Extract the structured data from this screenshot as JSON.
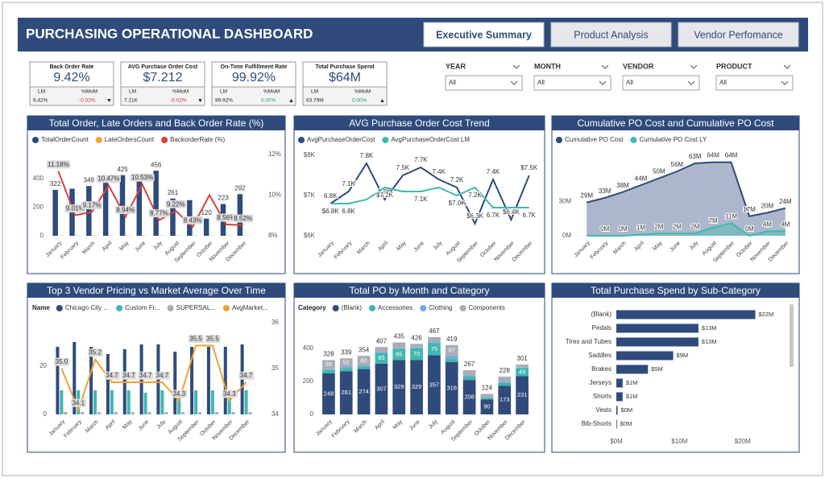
{
  "header": {
    "title": "PURCHASING OPERATIONAL DASHBOARD",
    "tabs": [
      "Executive Summary",
      "Product Analysis",
      "Vendor Perfomance"
    ],
    "active_tab": 0
  },
  "kpis": [
    {
      "title": "Back Order Rate",
      "value": "9.42%",
      "lm_label": "LM",
      "mom_label": "%MoM",
      "lm_value": "9.42%",
      "mom_value": "-0.02%",
      "mom_color": "#d62b2b",
      "trend": "▼"
    },
    {
      "title": "AVG Purchase Order Cost",
      "value": "$7.212",
      "lm_label": "LM",
      "mom_label": "%MoM",
      "lm_value": "7.21K",
      "mom_value": "-0.02%",
      "mom_color": "#d62b2b",
      "trend": "▼"
    },
    {
      "title": "On-Time Fulfillment Rate",
      "value": "99.92%",
      "lm_label": "LM",
      "mom_label": "%MoM",
      "lm_value": "99.92%",
      "mom_value": "0.00%",
      "mom_color": "#1e9e6a",
      "trend": "▲"
    },
    {
      "title": "Total Purchase Spend",
      "value": "$64M",
      "lm_label": "LM",
      "mom_label": "%MoM",
      "lm_value": "63.79M",
      "mom_value": "0.00%",
      "mom_color": "#1e9e6a",
      "trend": "▲"
    }
  ],
  "filters": [
    {
      "label": "YEAR",
      "value": "All"
    },
    {
      "label": "MONTH",
      "value": "All"
    },
    {
      "label": "VENDOR",
      "value": "All"
    },
    {
      "label": "PRODUCT",
      "value": "All"
    }
  ],
  "chart_data": [
    {
      "type": "combo",
      "title": "Total Order, Late Orders and Back Order Rate (%)",
      "categories": [
        "January",
        "February",
        "March",
        "April",
        "May",
        "June",
        "July",
        "August",
        "September",
        "October",
        "November",
        "December"
      ],
      "series": [
        {
          "name": "TotalOrderCount",
          "color": "#2f4b7c",
          "kind": "bar",
          "values": [
            322,
            330,
            349,
            400,
            425,
            410,
            456,
            261,
            250,
            120,
            223,
            292
          ],
          "value_labels": [
            "322",
            null,
            "349",
            null,
            "425",
            null,
            "456",
            "261",
            null,
            "120",
            "223",
            "292"
          ]
        },
        {
          "name": "LateOrdersCount",
          "color": "#f0a830",
          "kind": "bar",
          "values": [
            2,
            2,
            2,
            2,
            2,
            2,
            2,
            2,
            2,
            2,
            2,
            2
          ]
        },
        {
          "name": "BackorderRate (%)",
          "color": "#d9403a",
          "kind": "line",
          "axis": "y2",
          "values": [
            11.18,
            9.01,
            9.17,
            10.47,
            8.94,
            10.53,
            8.77,
            9.22,
            8.43,
            10.0,
            8.56,
            8.52
          ],
          "value_labels": [
            "11.18%",
            "9.01%",
            "9.17%",
            "10.47%",
            "8.94%",
            "10.53%",
            "8.77%",
            "9.22%",
            "8.43%",
            null,
            "8.56%",
            "8.52%"
          ]
        }
      ],
      "ylim": [
        0,
        570
      ],
      "yticks": [
        0,
        200,
        400
      ],
      "y2lim": [
        8,
        12
      ],
      "y2ticks": [
        {
          "value": 8,
          "label": "8%"
        },
        {
          "value": 10,
          "label": "10%"
        },
        {
          "value": 12,
          "label": "12%"
        }
      ]
    },
    {
      "type": "line",
      "title": "AVG Purchase Order Cost Trend",
      "categories": [
        "January",
        "February",
        "March",
        "April",
        "May",
        "June",
        "July",
        "August",
        "September",
        "October",
        "November",
        "December"
      ],
      "series": [
        {
          "name": "AvgPurchaseOrderCost",
          "color": "#2f4b7c",
          "values": [
            6.8,
            7.1,
            7.8,
            6.9,
            7.5,
            7.7,
            7.4,
            7.2,
            6.3,
            7.4,
            6.4,
            7.5
          ],
          "value_labels": [
            "6.8K",
            "7.1K",
            "7.8K",
            "6.9K",
            "7.5K",
            "7.7K",
            "7.4K",
            "7.2K",
            "$6.3K",
            "7.4K",
            "$6.4K",
            "$7.5K"
          ]
        },
        {
          "name": "AvgPurchaseOrderCost LM",
          "color": "#3fb8af",
          "values": [
            6.8,
            6.8,
            6.9,
            7.2,
            7.1,
            7.1,
            7.2,
            7.0,
            7.2,
            6.7,
            6.7,
            6.7
          ],
          "value_labels": [
            "$6.8K",
            "6.8K",
            null,
            "$7.2K",
            null,
            "7.1K",
            null,
            "$7.0K",
            "7.2K",
            "6.7K",
            null,
            "6.7K"
          ]
        }
      ],
      "ylim": [
        6,
        8
      ],
      "yticks": [
        {
          "value": 6,
          "label": "$6K"
        },
        {
          "value": 7,
          "label": "$7K"
        },
        {
          "value": 8,
          "label": "$8K"
        }
      ]
    },
    {
      "type": "area",
      "title": "Cumulative PO Cost and Cumulative PO Cost",
      "categories": [
        "January",
        "February",
        "March",
        "April",
        "May",
        "June",
        "July",
        "August",
        "September",
        "October",
        "November",
        "December"
      ],
      "series": [
        {
          "name": "Cumulative PO Cost",
          "color": "#2f4b7c",
          "values": [
            29,
            33,
            38,
            44,
            50,
            56,
            63,
            64,
            64,
            17,
            20,
            24
          ],
          "value_labels": [
            "29M",
            "33M",
            "38M",
            "44M",
            "50M",
            "56M",
            "63M",
            "64M",
            "64M",
            "17M",
            "20M",
            "24M"
          ]
        },
        {
          "name": "Cumulative PO Cost LY",
          "color": "#3fb8af",
          "values": [
            0,
            0,
            0,
            1,
            2,
            2,
            2,
            7,
            11,
            0,
            4,
            4
          ],
          "value_labels": [
            null,
            "0M",
            "0M",
            "1M",
            "2M",
            "2M",
            "2M",
            "7M",
            "11M",
            "0M",
            "4M",
            "4M"
          ]
        }
      ],
      "ylim": [
        0,
        70
      ],
      "yticks": [
        {
          "value": 0,
          "label": "0M"
        },
        {
          "value": 30,
          "label": "30M"
        }
      ]
    },
    {
      "type": "combo",
      "title": "Top 3 Vendor Pricing vs Market Average Over Time",
      "legend_title": "Name",
      "categories": [
        "January",
        "February",
        "March",
        "April",
        "May",
        "June",
        "July",
        "August",
        "September",
        "October",
        "November",
        "December"
      ],
      "series": [
        {
          "name": "Chicago City ...",
          "color": "#2f4b7c",
          "kind": "bar",
          "values": [
            28,
            30,
            28,
            25,
            27,
            29,
            29,
            26,
            28,
            28,
            28,
            29
          ]
        },
        {
          "name": "Custom Fr...",
          "color": "#3fb8af",
          "kind": "bar",
          "values": [
            10,
            10,
            10,
            10,
            10,
            9,
            10,
            9,
            10,
            10,
            9,
            10
          ]
        },
        {
          "name": "SUPERSAL...",
          "color": "#a9adb8",
          "kind": "bar",
          "values": [
            1,
            1,
            1,
            1,
            1,
            1,
            1,
            1,
            1,
            1,
            1,
            1
          ]
        },
        {
          "name": "AvgMarket...",
          "color": "#f0a030",
          "kind": "line",
          "axis": "y2",
          "values": [
            35.0,
            34.1,
            35.2,
            34.7,
            34.7,
            34.7,
            34.7,
            34.3,
            35.5,
            35.5,
            34.3,
            34.7
          ],
          "value_labels": [
            "35.0",
            "34.1",
            "35.2",
            "34.7",
            "34.7",
            "34.7",
            "34.7",
            "34.3",
            "35.5",
            "35.5",
            "34.3",
            "34.7"
          ]
        }
      ],
      "ylim": [
        0,
        38
      ],
      "yticks": [
        0,
        20
      ],
      "y2lim": [
        34,
        36
      ],
      "y2ticks": [
        34,
        35,
        36
      ]
    },
    {
      "type": "stacked",
      "title": "Total PO by Month and Category",
      "legend_title": "Category",
      "categories": [
        "January",
        "February",
        "March",
        "April",
        "May",
        "June",
        "July",
        "August",
        "September",
        "October",
        "November",
        "December"
      ],
      "series": [
        {
          "name": "(Blank)",
          "color": "#2f4b7c",
          "values": [
            248,
            261,
            274,
            307,
            329,
            329,
            357,
            316,
            208,
            90,
            173,
            231
          ],
          "value_labels": [
            "248",
            "261",
            "274",
            "307",
            "329",
            "329",
            "357",
            "316",
            "208",
            "90",
            "173",
            "231"
          ]
        },
        {
          "name": "Accessories",
          "color": "#3fb8af",
          "values": [
            20,
            20,
            15,
            65,
            65,
            70,
            75,
            20,
            20,
            10,
            20,
            49
          ],
          "value_labels": [
            null,
            null,
            null,
            "65",
            "65",
            "70",
            "75",
            null,
            null,
            null,
            null,
            "49"
          ]
        },
        {
          "name": "Clothing",
          "color": "#7aa6e0",
          "values": [
            5,
            6,
            5,
            5,
            5,
            5,
            5,
            16,
            9,
            4,
            5,
            3
          ]
        },
        {
          "name": "Components",
          "color": "#a9adb8",
          "values": [
            55,
            52,
            60,
            30,
            36,
            22,
            30,
            67,
            30,
            20,
            30,
            18
          ],
          "value_labels": [
            "55",
            "52",
            "60",
            null,
            null,
            null,
            null,
            "67",
            null,
            null,
            null,
            null
          ]
        }
      ],
      "total_labels": [
        328,
        339,
        354,
        407,
        435,
        426,
        467,
        419,
        267,
        124,
        228,
        301
      ],
      "ylim": [
        0,
        520
      ],
      "yticks": [
        0,
        200,
        400
      ]
    },
    {
      "type": "hbar",
      "title": "Total Purchase Spend by Sub-Category",
      "categories": [
        "(Blank)",
        "Pedals",
        "Tires and Tubes",
        "Saddles",
        "Brakes",
        "Jerseys",
        "Shorts",
        "Vests",
        "Bib-Shorts"
      ],
      "values": [
        22,
        13,
        13,
        9,
        5,
        1,
        1,
        0.2,
        0.1
      ],
      "color": "#2f4b7c",
      "value_labels": [
        "$22M",
        "$13M",
        "$13M",
        "$9M",
        "$5M",
        "$1M",
        "$1M",
        "$0M",
        "$0M"
      ],
      "xlim": [
        0,
        25
      ],
      "xticks": [
        {
          "value": 0,
          "label": "$0M"
        },
        {
          "value": 10,
          "label": "$10M"
        },
        {
          "value": 20,
          "label": "$20M"
        }
      ]
    }
  ]
}
